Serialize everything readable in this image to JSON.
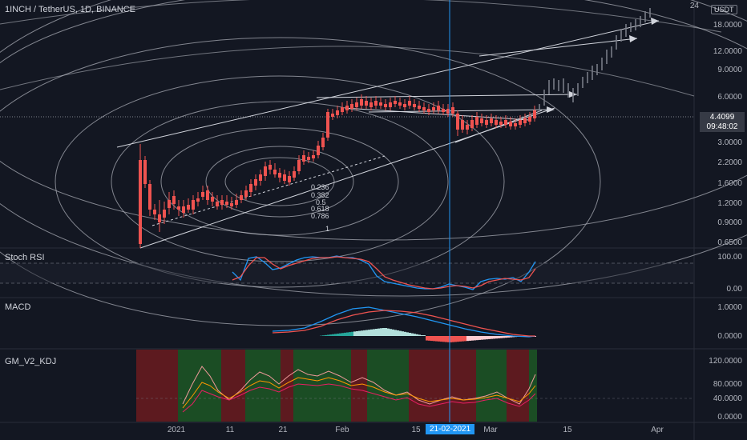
{
  "symbol": "1INCH / TetherUS, 1D, BINANCE",
  "currency_badge": "USDT",
  "price_axis": [
    "24",
    "18.0000",
    "12.0000",
    "9.0000",
    "6.0000",
    "3.0000",
    "2.2000",
    "1.6000",
    "1.2000",
    "0.9000",
    "0.6500"
  ],
  "current_price": "4.4099",
  "countdown": "09:48:02",
  "fib_levels": [
    "0.236",
    "0.382",
    "0.5",
    "0.618",
    "0.786",
    "1"
  ],
  "stoch_rsi": {
    "title": "Stoch RSI",
    "axis": [
      "100.00",
      "0.00"
    ]
  },
  "macd": {
    "title": "MACD",
    "axis": [
      "1.0000",
      "0.0000"
    ]
  },
  "kdj": {
    "title": "GM_V2_KDJ",
    "axis": [
      "120.0000",
      "80.0000",
      "40.0000",
      "0.0000"
    ]
  },
  "time_axis": [
    "2021",
    "11",
    "21",
    "Feb",
    "15",
    "Mar",
    "15",
    "Apr"
  ],
  "crosshair_date": "21-02-2021",
  "colors": {
    "up": "#26a69a",
    "down": "#ef5350",
    "crosshair": "#2196f3",
    "background": "#131722"
  }
}
